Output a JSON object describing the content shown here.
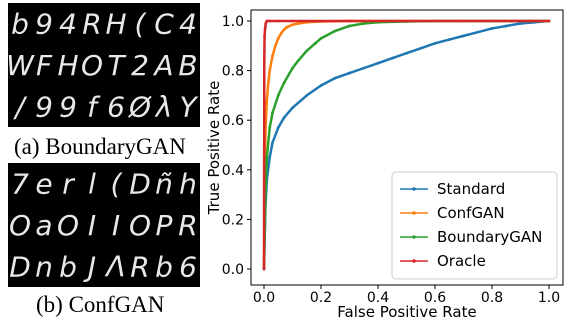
{
  "figure": {
    "caption_a": "(a) BoundaryGAN",
    "caption_b": "(b) ConfGAN"
  },
  "digit_grids": [
    {
      "name": "BoundaryGAN samples",
      "rows": [
        [
          "b",
          "9",
          "4",
          "R",
          "H",
          "(",
          "C",
          "4"
        ],
        [
          "W",
          "F",
          "H",
          "O",
          "T",
          "2",
          "A",
          "B"
        ],
        [
          "/",
          "9",
          "9",
          "f",
          "6",
          "Ø",
          "λ",
          "Y"
        ]
      ]
    },
    {
      "name": "ConfGAN samples",
      "rows": [
        [
          "7",
          "e",
          "r",
          "l",
          "(",
          "D",
          "ñ",
          "h"
        ],
        [
          "O",
          "a",
          "O",
          "I",
          "I",
          "O",
          "P",
          "R"
        ],
        [
          "D",
          "n",
          "b",
          "J",
          "Λ",
          "R",
          "b",
          "6"
        ]
      ]
    }
  ],
  "chart_data": {
    "type": "line",
    "title": "",
    "xlabel": "False Positive Rate",
    "ylabel": "True Positive Rate",
    "xlim": [
      0,
      1
    ],
    "ylim": [
      0,
      1
    ],
    "xticks": [
      "0.0",
      "0.2",
      "0.4",
      "0.6",
      "0.8",
      "1.0"
    ],
    "yticks": [
      "0.0",
      "0.2",
      "0.4",
      "0.6",
      "0.8",
      "1.0"
    ],
    "grid": false,
    "legend_position": "bottom-right",
    "series": [
      {
        "name": "Standard",
        "color": "#1f77b4",
        "x": [
          0,
          0.005,
          0.01,
          0.02,
          0.03,
          0.05,
          0.07,
          0.1,
          0.15,
          0.2,
          0.25,
          0.3,
          0.35,
          0.4,
          0.45,
          0.5,
          0.55,
          0.6,
          0.65,
          0.7,
          0.75,
          0.8,
          0.85,
          0.9,
          0.95,
          1.0
        ],
        "y": [
          0,
          0.25,
          0.36,
          0.45,
          0.51,
          0.57,
          0.61,
          0.65,
          0.7,
          0.74,
          0.77,
          0.79,
          0.81,
          0.83,
          0.85,
          0.87,
          0.89,
          0.91,
          0.925,
          0.94,
          0.955,
          0.97,
          0.98,
          0.99,
          0.995,
          1.0
        ]
      },
      {
        "name": "ConfGAN",
        "color": "#ff7f0e",
        "x": [
          0,
          0.003,
          0.006,
          0.01,
          0.015,
          0.02,
          0.03,
          0.04,
          0.05,
          0.06,
          0.07,
          0.08,
          0.1,
          0.12,
          0.15,
          0.2,
          0.3,
          0.5,
          1.0
        ],
        "y": [
          0,
          0.45,
          0.58,
          0.68,
          0.75,
          0.8,
          0.86,
          0.9,
          0.93,
          0.95,
          0.965,
          0.975,
          0.985,
          0.99,
          0.995,
          0.998,
          1.0,
          1.0,
          1.0
        ]
      },
      {
        "name": "BoundaryGAN",
        "color": "#2ca02c",
        "x": [
          0,
          0.005,
          0.01,
          0.02,
          0.03,
          0.05,
          0.07,
          0.1,
          0.12,
          0.15,
          0.18,
          0.2,
          0.25,
          0.3,
          0.35,
          0.4,
          0.5,
          0.6,
          0.8,
          1.0
        ],
        "y": [
          0,
          0.3,
          0.45,
          0.57,
          0.63,
          0.7,
          0.75,
          0.81,
          0.84,
          0.88,
          0.91,
          0.93,
          0.96,
          0.98,
          0.99,
          0.995,
          0.998,
          1.0,
          1.0,
          1.0
        ]
      },
      {
        "name": "Oracle",
        "color": "#d62728",
        "x": [
          0,
          0.001,
          0.002,
          0.004,
          0.006,
          0.01,
          0.02,
          0.05,
          0.1,
          0.3,
          0.5,
          0.7,
          1.0
        ],
        "y": [
          0,
          0.85,
          0.94,
          0.97,
          0.99,
          1.0,
          1.0,
          1.0,
          1.0,
          1.0,
          1.0,
          1.0,
          1.0
        ]
      }
    ]
  }
}
